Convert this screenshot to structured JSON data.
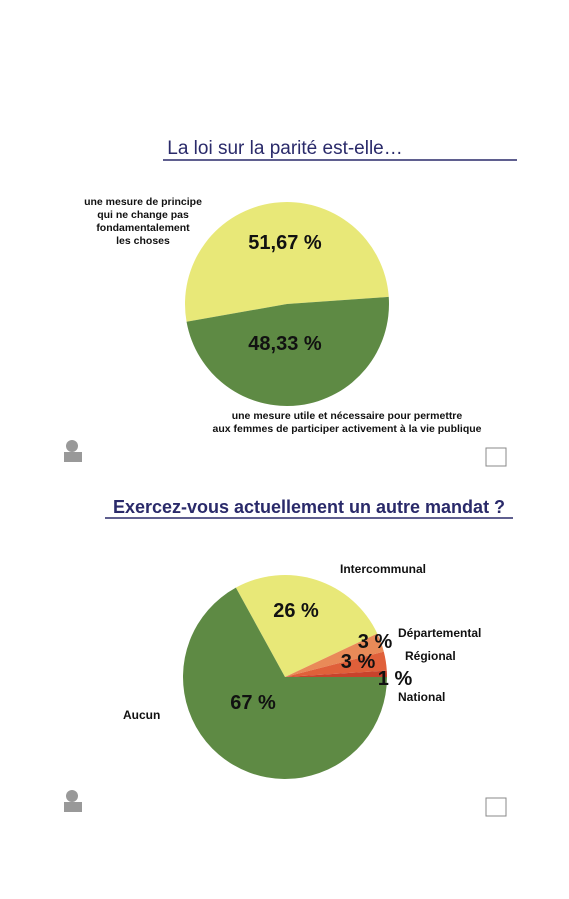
{
  "chart_data": [
    {
      "type": "pie",
      "title": "La loi sur la parité est-elle…",
      "categories": [
        "une mesure de principe\nqui ne change pas\nfondamentalement\nles choses",
        "une mesure utile et nécessaire pour permettre\naux femmes de participer activement à la vie publique"
      ],
      "values": [
        51.67,
        48.33
      ],
      "value_labels": [
        "51,67 %",
        "48,33 %"
      ],
      "colors": [
        "#e8e878",
        "#5e8a44"
      ]
    },
    {
      "type": "pie",
      "title": "Exercez-vous actuellement un autre mandat ?",
      "categories": [
        "Intercommunal",
        "Départemental",
        "Régional",
        "National",
        "Aucun"
      ],
      "values": [
        26,
        3,
        3,
        1,
        67
      ],
      "value_labels": [
        "26 %",
        "3 %",
        "3 %",
        "1 %",
        "67 %"
      ],
      "colors": [
        "#e8e878",
        "#e98a58",
        "#e0603a",
        "#c8432c",
        "#5e8a44"
      ]
    }
  ]
}
